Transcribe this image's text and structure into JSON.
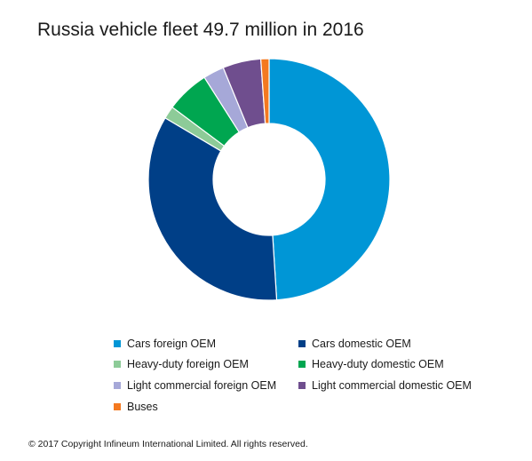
{
  "chart_data": {
    "type": "pie",
    "title": "Russia vehicle fleet 49.7 million in 2016",
    "donut": true,
    "legend_position": "bottom",
    "series": [
      {
        "name": "Cars foreign OEM",
        "value": 49.0,
        "color": "#0096D6"
      },
      {
        "name": "Cars domestic OEM",
        "value": 34.5,
        "color": "#003F87"
      },
      {
        "name": "Heavy-duty foreign OEM",
        "value": 1.7,
        "color": "#8DCB98"
      },
      {
        "name": "Heavy-duty domestic OEM",
        "value": 5.8,
        "color": "#00A650"
      },
      {
        "name": "Light commercial foreign OEM",
        "value": 2.8,
        "color": "#A6A8D8"
      },
      {
        "name": "Light commercial domestic OEM",
        "value": 5.1,
        "color": "#6F4E8E"
      },
      {
        "name": "Buses",
        "value": 1.1,
        "color": "#F47920"
      }
    ]
  },
  "legend": [
    {
      "label": "Cars foreign OEM",
      "color": "#0096D6"
    },
    {
      "label": "Cars domestic OEM",
      "color": "#003F87"
    },
    {
      "label": "Heavy-duty foreign OEM",
      "color": "#8DCB98"
    },
    {
      "label": "Heavy-duty domestic OEM",
      "color": "#00A650"
    },
    {
      "label": "Light commercial foreign OEM",
      "color": "#A6A8D8"
    },
    {
      "label": "Light commercial domestic OEM",
      "color": "#6F4E8E"
    },
    {
      "label": "Buses",
      "color": "#F47920"
    }
  ],
  "footer": "© 2017 Copyright Infineum International Limited. All rights reserved."
}
